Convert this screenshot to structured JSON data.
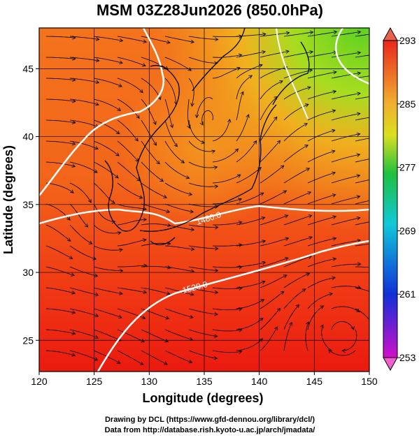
{
  "title": "MSM 03Z28Jun2026 (850.0hPa)",
  "x_axis": {
    "label": "Longitude (degrees)",
    "lim": [
      120,
      150
    ],
    "ticks": [
      120,
      125,
      130,
      135,
      140,
      145,
      150
    ]
  },
  "y_axis": {
    "label": "Latitude  (degrees)",
    "lim": [
      22.7,
      48
    ],
    "ticks": [
      25,
      30,
      35,
      40,
      45
    ]
  },
  "colorbar": {
    "lim": [
      253,
      293
    ],
    "ticks": [
      253,
      261,
      269,
      277,
      285,
      293
    ]
  },
  "contour_labels": [
    "1480.0",
    "1520.0"
  ],
  "credits": [
    "Drawing by DCL (https://www.gfd-dennou.org/library/dcl/)",
    "Data from http://database.rish.kyoto-u.ac.jp/arch/jmadata/"
  ]
}
